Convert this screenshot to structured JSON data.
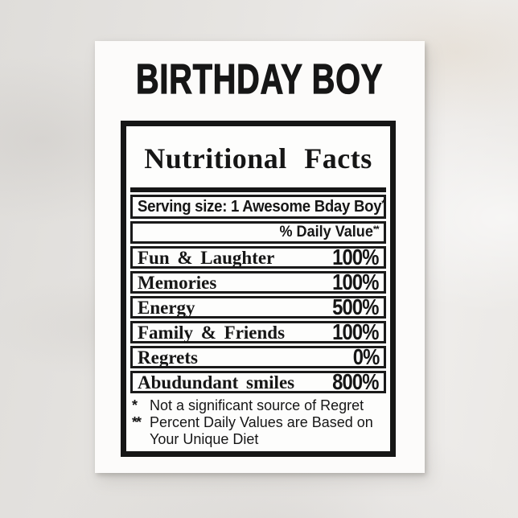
{
  "colors": {
    "background_base": "#e5e3e0",
    "card": "#fcfbfa",
    "ink": "#161616"
  },
  "card": {
    "title": "BIRTHDAY BOY",
    "label": {
      "heading": "Nutritional Facts",
      "serving": {
        "text": "Serving size: 1 Awesome Bday Boy",
        "marker": "*"
      },
      "daily_value": {
        "text": "% Daily Value",
        "marker": "**"
      },
      "rows": [
        {
          "name": "Fun & Laughter",
          "value": "100%"
        },
        {
          "name": "Memories",
          "value": "100%"
        },
        {
          "name": "Energy",
          "value": "500%"
        },
        {
          "name": "Family & Friends",
          "value": "100%"
        },
        {
          "name": "Regrets",
          "value": "0%"
        },
        {
          "name": "Abudundant smiles",
          "value": "800%"
        }
      ],
      "footnotes": [
        {
          "marker": "*",
          "lines": [
            "Not a significant source of Regret"
          ]
        },
        {
          "marker": "**",
          "lines": [
            "Percent Daily Values are Based on",
            "Your Unique Diet"
          ]
        }
      ]
    }
  }
}
